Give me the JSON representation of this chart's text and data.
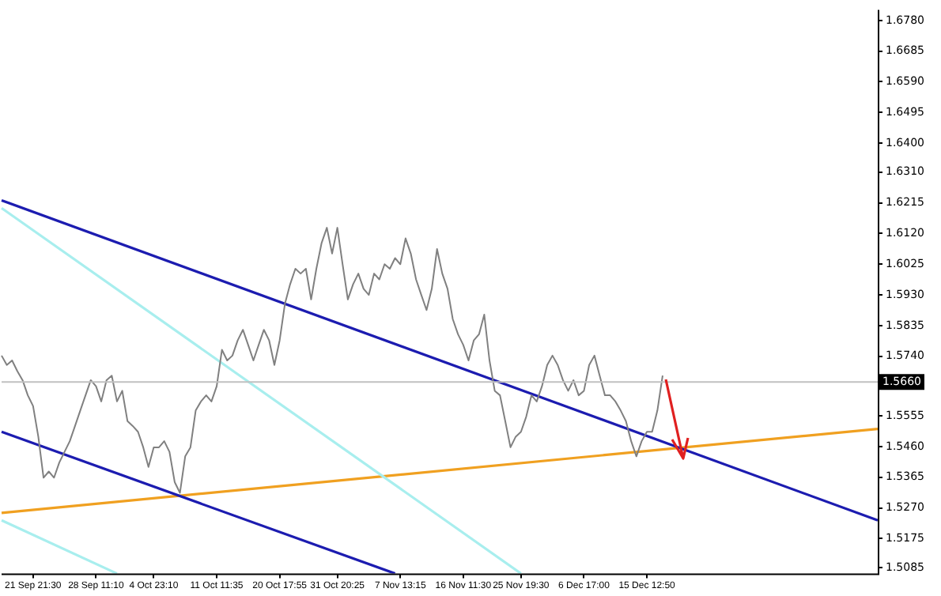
{
  "chart_data": {
    "type": "line",
    "grid": false,
    "legend": false,
    "marker": "none",
    "categories": [
      null,
      null,
      null,
      null,
      null,
      null,
      "21 Sep 21:30",
      null,
      null,
      null,
      null,
      null,
      null,
      null,
      null,
      null,
      null,
      null,
      "28 Sep 11:10",
      null,
      null,
      null,
      null,
      null,
      null,
      null,
      null,
      null,
      null,
      "4 Oct 23:10",
      null,
      null,
      null,
      null,
      null,
      null,
      null,
      null,
      null,
      null,
      null,
      "11 Oct 11:35",
      null,
      null,
      null,
      null,
      null,
      null,
      null,
      null,
      null,
      null,
      null,
      "20 Oct 17:55",
      null,
      null,
      null,
      null,
      null,
      null,
      null,
      null,
      null,
      null,
      "31 Oct 20:25",
      null,
      null,
      null,
      null,
      null,
      null,
      null,
      null,
      null,
      null,
      null,
      "7 Nov 13:15",
      null,
      null,
      null,
      null,
      null,
      null,
      null,
      null,
      null,
      null,
      null,
      "16 Nov 11:30",
      null,
      null,
      null,
      null,
      null,
      null,
      null,
      null,
      null,
      null,
      "25 Nov 19:30",
      null,
      null,
      null,
      null,
      null,
      null,
      null,
      null,
      null,
      null,
      null,
      "6 Dec 17:00",
      null,
      null,
      null,
      null,
      null,
      null,
      null,
      null,
      null,
      null,
      null,
      "15 Dec 12:50",
      null,
      null,
      null,
      null,
      null,
      null,
      null,
      null,
      null,
      null,
      null,
      null,
      null,
      null,
      null,
      null,
      null,
      null,
      null,
      null,
      null,
      null,
      null,
      null,
      null,
      null,
      null,
      null,
      null,
      null,
      null,
      null,
      null,
      null,
      null,
      null,
      null,
      null,
      null,
      null,
      null,
      null,
      null,
      null
    ],
    "ylim": [
      1.5067,
      1.6813
    ],
    "yticks": [
      {
        "value": 1.678,
        "label": "1.6780"
      },
      {
        "value": 1.6685,
        "label": "1.6685"
      },
      {
        "value": 1.659,
        "label": "1.6590"
      },
      {
        "value": 1.6495,
        "label": "1.6495"
      },
      {
        "value": 1.64,
        "label": "1.6400"
      },
      {
        "value": 1.631,
        "label": "1.6310"
      },
      {
        "value": 1.6215,
        "label": "1.6215"
      },
      {
        "value": 1.612,
        "label": "1.6120"
      },
      {
        "value": 1.6025,
        "label": "1.6025"
      },
      {
        "value": 1.593,
        "label": "1.5930"
      },
      {
        "value": 1.5835,
        "label": "1.5835"
      },
      {
        "value": 1.574,
        "label": "1.5740"
      },
      {
        "value": 1.5555,
        "label": "1.5555"
      },
      {
        "value": 1.546,
        "label": "1.5460"
      },
      {
        "value": 1.5365,
        "label": "1.5365"
      },
      {
        "value": 1.527,
        "label": "1.5270"
      },
      {
        "value": 1.5175,
        "label": "1.5175"
      },
      {
        "value": 1.5085,
        "label": "1.5085"
      }
    ],
    "ref_lines": [
      {
        "axis": "y",
        "value": 1.566,
        "label": "1.5660",
        "color": "#c0c0c0"
      }
    ],
    "series": [
      {
        "color": "#808080",
        "values": [
          1.5742,
          1.5713,
          1.5727,
          1.5694,
          1.5666,
          1.5619,
          1.5586,
          1.5491,
          1.5364,
          1.5383,
          1.5364,
          1.5411,
          1.5444,
          1.5477,
          1.5524,
          1.5572,
          1.5619,
          1.5666,
          1.5647,
          1.56,
          1.5666,
          1.568,
          1.56,
          1.5633,
          1.5539,
          1.5524,
          1.5506,
          1.5458,
          1.5397,
          1.5458,
          1.5458,
          1.5477,
          1.5444,
          1.535,
          1.5317,
          1.543,
          1.5458,
          1.5572,
          1.56,
          1.5619,
          1.56,
          1.5647,
          1.576,
          1.5727,
          1.5742,
          1.5789,
          1.5822,
          1.5775,
          1.5727,
          1.5775,
          1.5822,
          1.5789,
          1.5713,
          1.5789,
          1.5902,
          1.5963,
          1.6011,
          1.5996,
          1.6011,
          1.5916,
          1.6011,
          1.6091,
          1.6138,
          1.6058,
          1.6138,
          1.6025,
          1.5916,
          1.5963,
          1.5996,
          1.5949,
          1.593,
          1.5996,
          1.5978,
          1.6025,
          1.6011,
          1.6044,
          1.6025,
          1.6105,
          1.6058,
          1.5978,
          1.593,
          1.5883,
          1.5949,
          1.6072,
          1.5996,
          1.5949,
          1.5855,
          1.5808,
          1.5775,
          1.5727,
          1.5789,
          1.5808,
          1.5869,
          1.5727,
          1.5633,
          1.5619,
          1.5539,
          1.5458,
          1.5491,
          1.5506,
          1.5553,
          1.5619,
          1.56,
          1.5647,
          1.5713,
          1.5742,
          1.5713,
          1.5666,
          1.5633,
          1.5666,
          1.5619,
          1.5633,
          1.5713,
          1.5742,
          1.568,
          1.5619,
          1.5619,
          1.56,
          1.5572,
          1.5539,
          1.5477,
          1.543,
          1.5477,
          1.5506,
          1.5506,
          1.5572,
          1.568,
          null,
          null,
          null,
          null,
          null,
          null,
          null,
          null,
          null,
          null,
          null,
          null,
          null,
          null,
          null,
          null,
          null,
          null,
          null,
          null,
          null,
          null,
          null,
          null,
          null,
          null,
          null,
          null,
          null,
          null,
          null,
          null,
          null,
          null,
          null,
          null,
          null,
          null,
          null,
          null,
          null
        ]
      },
      {
        "color": "#1c1cb0",
        "values": [
          1.6223,
          null,
          null,
          null,
          null,
          null,
          null,
          null,
          null,
          null,
          null,
          null,
          null,
          null,
          null,
          null,
          null,
          null,
          null,
          null,
          null,
          null,
          null,
          null,
          null,
          null,
          null,
          null,
          null,
          null,
          null,
          null,
          null,
          null,
          null,
          null,
          null,
          null,
          null,
          null,
          null,
          null,
          null,
          null,
          null,
          null,
          null,
          null,
          null,
          null,
          null,
          null,
          null,
          null,
          null,
          null,
          null,
          null,
          null,
          null,
          null,
          null,
          null,
          null,
          null,
          null,
          null,
          null,
          null,
          null,
          null,
          null,
          null,
          null,
          null,
          null,
          null,
          null,
          null,
          null,
          null,
          null,
          null,
          null,
          null,
          null,
          null,
          null,
          null,
          null,
          null,
          null,
          null,
          null,
          null,
          null,
          null,
          null,
          null,
          null,
          null,
          null,
          null,
          null,
          null,
          null,
          null,
          null,
          null,
          null,
          null,
          null,
          null,
          null,
          null,
          null,
          null,
          null,
          null,
          null,
          null,
          null,
          null,
          null,
          null,
          null,
          null,
          null,
          null,
          null,
          null,
          null,
          null,
          null,
          null,
          null,
          null,
          null,
          null,
          null,
          null,
          null,
          null,
          null,
          null,
          null,
          null,
          null,
          null,
          null,
          null,
          null,
          null,
          null,
          null,
          null,
          null,
          null,
          null,
          null,
          null,
          null,
          null,
          null,
          null,
          null,
          null,
          1.5232
        ]
      },
      {
        "color": "#1c1cb0",
        "values": [
          1.5506,
          null,
          null,
          null,
          null,
          null,
          null,
          null,
          null,
          null,
          null,
          null,
          null,
          null,
          null,
          null,
          null,
          null,
          null,
          null,
          null,
          null,
          null,
          null,
          null,
          null,
          null,
          null,
          null,
          null,
          null,
          null,
          null,
          null,
          null,
          null,
          null,
          null,
          null,
          null,
          null,
          null,
          null,
          null,
          null,
          null,
          null,
          null,
          null,
          null,
          null,
          null,
          null,
          null,
          null,
          null,
          null,
          null,
          null,
          null,
          null,
          null,
          null,
          null,
          null,
          null,
          null,
          null,
          null,
          null,
          null,
          null,
          null,
          null,
          null,
          1.5067,
          null,
          null,
          null,
          null,
          null,
          null,
          null,
          null,
          null,
          null,
          null,
          null,
          null,
          null,
          null,
          null,
          null,
          null,
          null,
          null,
          null,
          null,
          null,
          null,
          null,
          null,
          null,
          null,
          null,
          null,
          null,
          null,
          null,
          null,
          null,
          null,
          null,
          null,
          null,
          null,
          null,
          null,
          null,
          null,
          null,
          null,
          null,
          null,
          null,
          null,
          null,
          null,
          null,
          null,
          null,
          null,
          null,
          null,
          null,
          null,
          null,
          null,
          null,
          null,
          null,
          null,
          null,
          null,
          null,
          null,
          null,
          null,
          null,
          null,
          null,
          null,
          null,
          null,
          null,
          null,
          null,
          null,
          null,
          null,
          null,
          null,
          null,
          null,
          null,
          null,
          null,
          null
        ]
      },
      {
        "color": "#a8eeee",
        "values": [
          1.6199,
          null,
          null,
          null,
          null,
          null,
          null,
          null,
          null,
          null,
          null,
          null,
          null,
          null,
          null,
          null,
          null,
          null,
          null,
          null,
          null,
          null,
          null,
          null,
          null,
          null,
          null,
          null,
          null,
          null,
          null,
          null,
          null,
          null,
          null,
          null,
          null,
          null,
          null,
          null,
          null,
          null,
          null,
          null,
          null,
          null,
          null,
          null,
          null,
          null,
          null,
          null,
          null,
          null,
          null,
          null,
          null,
          null,
          null,
          null,
          null,
          null,
          null,
          null,
          null,
          null,
          null,
          null,
          null,
          null,
          null,
          null,
          null,
          null,
          null,
          null,
          null,
          null,
          null,
          null,
          null,
          null,
          null,
          null,
          null,
          null,
          null,
          null,
          null,
          null,
          null,
          null,
          null,
          null,
          null,
          null,
          null,
          null,
          null,
          1.5067,
          null,
          null,
          null,
          null,
          null,
          null,
          null,
          null,
          null,
          null,
          null,
          null,
          null,
          null,
          null,
          null,
          null,
          null,
          null,
          null,
          null,
          null,
          null,
          null,
          null,
          null,
          null,
          null,
          null,
          null,
          null,
          null,
          null,
          null,
          null,
          null,
          null,
          null,
          null,
          null,
          null,
          null,
          null,
          null,
          null,
          null,
          null,
          null,
          null,
          null,
          null,
          null,
          null,
          null,
          null,
          null,
          null,
          null,
          null,
          null,
          null,
          null,
          null,
          null,
          null,
          null,
          null,
          null
        ]
      },
      {
        "color": "#a8eeee",
        "values": [
          1.5232,
          null,
          null,
          null,
          null,
          null,
          null,
          null,
          null,
          null,
          null,
          null,
          null,
          null,
          null,
          null,
          null,
          null,
          null,
          null,
          null,
          null,
          1.5067,
          null,
          null,
          null,
          null,
          null,
          null,
          null,
          null,
          null,
          null,
          null,
          null,
          null,
          null,
          null,
          null,
          null,
          null,
          null,
          null,
          null,
          null,
          null,
          null,
          null,
          null,
          null,
          null,
          null,
          null,
          null,
          null,
          null,
          null,
          null,
          null,
          null,
          null,
          null,
          null,
          null,
          null,
          null,
          null,
          null,
          null,
          null,
          null,
          null,
          null,
          null,
          null,
          null,
          null,
          null,
          null,
          null,
          null,
          null,
          null,
          null,
          null,
          null,
          null,
          null,
          null,
          null,
          null,
          null,
          null,
          null,
          null,
          null,
          null,
          null,
          null,
          null,
          null,
          null,
          null,
          null,
          null,
          null,
          null,
          null,
          null,
          null,
          null,
          null,
          null,
          null,
          null,
          null,
          null,
          null,
          null,
          null,
          null,
          null,
          null,
          null,
          null,
          null,
          null,
          null,
          null,
          null,
          null,
          null,
          null,
          null,
          null,
          null,
          null,
          null,
          null,
          null,
          null,
          null,
          null,
          null,
          null,
          null,
          null,
          null,
          null,
          null,
          null,
          null,
          null,
          null,
          null,
          null,
          null,
          null,
          null,
          null,
          null,
          null,
          null,
          null,
          null,
          null,
          null,
          null
        ]
      },
      {
        "color": "#f0a020",
        "values": [
          1.5255,
          null,
          null,
          null,
          null,
          null,
          null,
          null,
          null,
          null,
          null,
          null,
          null,
          null,
          null,
          null,
          null,
          null,
          null,
          null,
          null,
          null,
          null,
          null,
          null,
          null,
          null,
          null,
          null,
          null,
          null,
          null,
          null,
          null,
          null,
          null,
          null,
          null,
          null,
          null,
          null,
          null,
          null,
          null,
          null,
          null,
          null,
          null,
          null,
          null,
          null,
          null,
          null,
          null,
          null,
          null,
          null,
          null,
          null,
          null,
          null,
          null,
          null,
          null,
          null,
          null,
          null,
          null,
          null,
          null,
          null,
          null,
          null,
          null,
          null,
          null,
          null,
          null,
          null,
          null,
          null,
          null,
          null,
          null,
          null,
          null,
          null,
          null,
          null,
          null,
          null,
          null,
          null,
          null,
          null,
          null,
          null,
          null,
          null,
          null,
          null,
          null,
          null,
          null,
          null,
          null,
          null,
          null,
          null,
          null,
          null,
          null,
          null,
          null,
          null,
          null,
          null,
          null,
          null,
          null,
          null,
          null,
          null,
          null,
          null,
          null,
          null,
          null,
          null,
          null,
          null,
          null,
          null,
          null,
          null,
          null,
          null,
          null,
          null,
          null,
          null,
          null,
          null,
          null,
          null,
          null,
          null,
          null,
          null,
          null,
          null,
          null,
          null,
          null,
          null,
          null,
          null,
          null,
          null,
          null,
          null,
          null,
          null,
          null,
          null,
          null,
          null,
          1.5515
        ]
      }
    ]
  }
}
